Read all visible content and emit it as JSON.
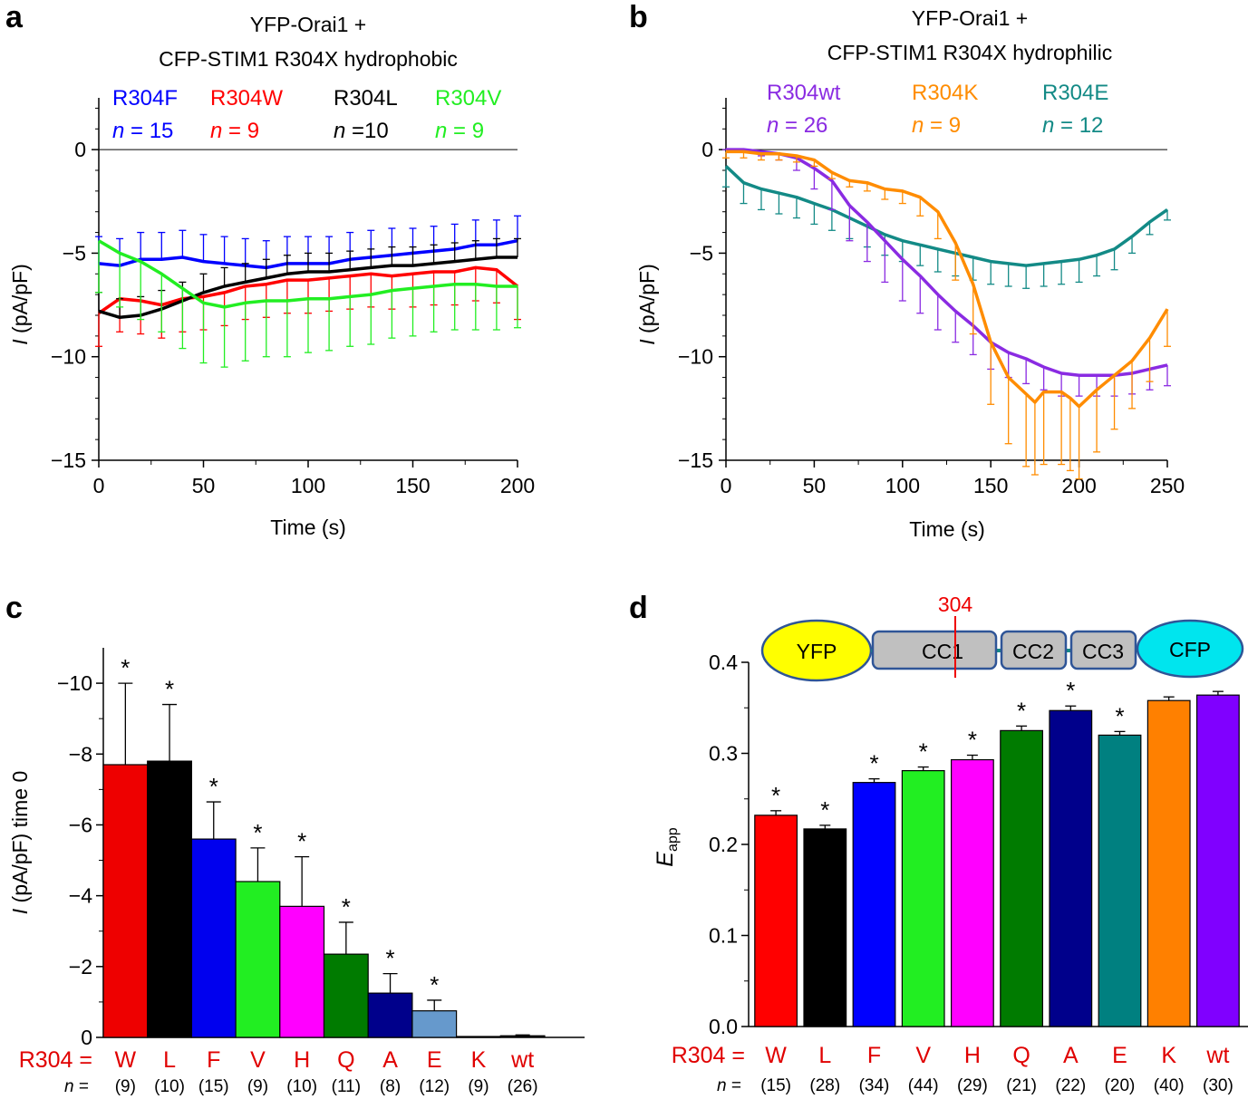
{
  "chart_data": [
    {
      "panel": "a",
      "type": "line",
      "title": [
        "YFP-Orai1 +",
        "CFP-STIM1 R304X hydrophobic"
      ],
      "xlabel": "Time (s)",
      "ylabel_italic": "I",
      "ylabel_rest": " (pA/pF)",
      "xlim": [
        0,
        200
      ],
      "ylim": [
        -15,
        2.5
      ],
      "xticks": [
        0,
        50,
        100,
        150,
        200
      ],
      "yticks": [
        0,
        -5,
        -10,
        -15
      ],
      "ytick_labels": [
        "0",
        "−5",
        "−10",
        "−15"
      ],
      "legend": [
        {
          "name": "R304F",
          "n_label": "n",
          "n_value": " = 15",
          "color": "#0000ff"
        },
        {
          "name": "R304W",
          "n_label": "n",
          "n_value": " = 9",
          "color": "#ff0000"
        },
        {
          "name": "R304L",
          "n_label": "n",
          "n_value": " =10",
          "color": "#000000"
        },
        {
          "name": "R304V",
          "n_label": "n",
          "n_value": " = 9",
          "color": "#22ee22"
        }
      ],
      "series": [
        {
          "name": "R304F",
          "color": "#0000ff",
          "err_dir": 1,
          "x": [
            0,
            10,
            20,
            30,
            40,
            50,
            60,
            70,
            80,
            90,
            100,
            110,
            120,
            130,
            140,
            150,
            160,
            170,
            180,
            190,
            200
          ],
          "y": [
            -5.5,
            -5.6,
            -5.3,
            -5.3,
            -5.2,
            -5.4,
            -5.5,
            -5.6,
            -5.7,
            -5.5,
            -5.5,
            -5.5,
            -5.3,
            -5.2,
            -5.1,
            -5.0,
            -4.9,
            -4.8,
            -4.6,
            -4.6,
            -4.4
          ],
          "err": [
            1.3,
            1.3,
            1.3,
            1.3,
            1.3,
            1.3,
            1.3,
            1.3,
            1.3,
            1.3,
            1.3,
            1.3,
            1.3,
            1.3,
            1.3,
            1.2,
            1.2,
            1.2,
            1.2,
            1.2,
            1.2
          ]
        },
        {
          "name": "R304W",
          "color": "#ff0000",
          "err_dir": -1,
          "x": [
            0,
            10,
            20,
            30,
            40,
            50,
            60,
            70,
            80,
            90,
            100,
            110,
            120,
            130,
            140,
            150,
            160,
            170,
            180,
            190,
            200
          ],
          "y": [
            -7.9,
            -7.2,
            -7.3,
            -7.5,
            -7.2,
            -7.1,
            -6.9,
            -6.6,
            -6.5,
            -6.3,
            -6.3,
            -6.2,
            -6.1,
            -6.0,
            -6.1,
            -6.0,
            -5.9,
            -5.9,
            -5.7,
            -5.8,
            -6.6
          ],
          "err": [
            1.6,
            1.6,
            1.6,
            1.6,
            1.6,
            1.6,
            1.6,
            1.6,
            1.6,
            1.6,
            1.6,
            1.6,
            1.6,
            1.6,
            1.6,
            1.6,
            1.6,
            1.6,
            1.6,
            1.6,
            1.6
          ]
        },
        {
          "name": "R304L",
          "color": "#000000",
          "err_dir": 1,
          "x": [
            0,
            10,
            20,
            30,
            40,
            50,
            60,
            70,
            80,
            90,
            100,
            110,
            120,
            130,
            140,
            150,
            160,
            170,
            180,
            190,
            200
          ],
          "y": [
            -7.8,
            -8.1,
            -8.0,
            -7.7,
            -7.3,
            -6.9,
            -6.6,
            -6.4,
            -6.2,
            -6.0,
            -5.9,
            -5.9,
            -5.8,
            -5.7,
            -5.6,
            -5.6,
            -5.5,
            -5.4,
            -5.3,
            -5.2,
            -5.2
          ],
          "err": [
            0.9,
            0.9,
            0.9,
            0.9,
            0.9,
            0.9,
            0.9,
            0.9,
            0.9,
            0.9,
            0.9,
            0.9,
            0.9,
            0.9,
            0.9,
            0.9,
            0.9,
            0.9,
            0.9,
            0.9,
            0.9
          ]
        },
        {
          "name": "R304V",
          "color": "#22ee22",
          "err_dir": -1,
          "x": [
            0,
            10,
            20,
            30,
            40,
            50,
            60,
            70,
            80,
            90,
            100,
            110,
            120,
            130,
            140,
            150,
            160,
            170,
            180,
            190,
            200
          ],
          "y": [
            -4.4,
            -5.0,
            -5.4,
            -6.0,
            -6.7,
            -7.4,
            -7.6,
            -7.4,
            -7.3,
            -7.3,
            -7.2,
            -7.2,
            -7.1,
            -7.0,
            -6.8,
            -6.7,
            -6.6,
            -6.5,
            -6.5,
            -6.6,
            -6.6
          ],
          "err": [
            2.5,
            2.6,
            2.8,
            2.8,
            2.9,
            2.9,
            2.9,
            2.8,
            2.7,
            2.7,
            2.6,
            2.5,
            2.4,
            2.4,
            2.3,
            2.3,
            2.2,
            2.2,
            2.2,
            2.1,
            2.0
          ]
        }
      ]
    },
    {
      "panel": "b",
      "type": "line",
      "title": [
        "YFP-Orai1 +",
        "CFP-STIM1 R304X hydrophilic"
      ],
      "xlabel": "Time (s)",
      "ylabel_italic": "I",
      "ylabel_rest": " (pA/pF)",
      "xlim": [
        0,
        250
      ],
      "ylim": [
        -15,
        2.5
      ],
      "xticks": [
        0,
        50,
        100,
        150,
        200,
        250
      ],
      "yticks": [
        0,
        -5,
        -10,
        -15
      ],
      "ytick_labels": [
        "0",
        "−5",
        "−10",
        "−15"
      ],
      "legend": [
        {
          "name": "R304wt",
          "n_label": "n",
          "n_value": " = 26",
          "color": "#8a2be2"
        },
        {
          "name": "R304K",
          "n_label": "n",
          "n_value": " = 9",
          "color": "#ff8c00"
        },
        {
          "name": "R304E",
          "n_label": "n",
          "n_value": " = 12",
          "color": "#138a86"
        }
      ],
      "series": [
        {
          "name": "R304E",
          "color": "#138a86",
          "err_dir": -1,
          "x": [
            0,
            10,
            20,
            30,
            40,
            50,
            60,
            70,
            80,
            90,
            100,
            110,
            120,
            130,
            140,
            150,
            160,
            170,
            180,
            190,
            200,
            210,
            220,
            230,
            240,
            250
          ],
          "y": [
            -0.8,
            -1.6,
            -1.9,
            -2.1,
            -2.3,
            -2.6,
            -2.9,
            -3.3,
            -3.7,
            -4.1,
            -4.4,
            -4.6,
            -4.8,
            -5.0,
            -5.2,
            -5.4,
            -5.5,
            -5.6,
            -5.5,
            -5.4,
            -5.3,
            -5.1,
            -4.8,
            -4.2,
            -3.5,
            -2.9
          ],
          "err": [
            1.0,
            1.0,
            1.0,
            1.0,
            1.0,
            1.0,
            1.0,
            1.0,
            1.0,
            1.0,
            1.0,
            1.0,
            1.1,
            1.1,
            1.1,
            1.1,
            1.1,
            1.1,
            1.1,
            1.1,
            1.1,
            1.0,
            1.0,
            0.8,
            0.6,
            0.5
          ]
        },
        {
          "name": "R304wt",
          "color": "#8a2be2",
          "err_dir": -1,
          "x": [
            0,
            10,
            20,
            30,
            40,
            50,
            60,
            70,
            80,
            90,
            100,
            110,
            120,
            130,
            140,
            150,
            160,
            170,
            180,
            190,
            200,
            210,
            220,
            230,
            240,
            250
          ],
          "y": [
            0,
            0,
            -0.1,
            -0.2,
            -0.4,
            -0.9,
            -1.5,
            -2.7,
            -3.5,
            -4.4,
            -5.3,
            -6.1,
            -7.0,
            -7.8,
            -8.5,
            -9.3,
            -9.8,
            -10.1,
            -10.5,
            -10.8,
            -10.9,
            -10.9,
            -10.9,
            -10.8,
            -10.6,
            -10.4
          ],
          "err": [
            0,
            0.1,
            0.2,
            0.3,
            0.6,
            1.0,
            1.4,
            1.7,
            1.9,
            2.0,
            2.0,
            1.8,
            1.7,
            1.5,
            1.4,
            1.3,
            1.2,
            1.2,
            1.1,
            1.1,
            1.0,
            1.0,
            1.0,
            1.0,
            1.0,
            1.0
          ]
        },
        {
          "name": "R304K",
          "color": "#ff8c00",
          "err_dir": -1,
          "x": [
            0,
            10,
            20,
            30,
            40,
            50,
            60,
            70,
            80,
            90,
            100,
            110,
            120,
            130,
            140,
            150,
            160,
            170,
            175,
            180,
            190,
            195,
            200,
            210,
            220,
            230,
            240,
            250
          ],
          "y": [
            -0.1,
            -0.1,
            -0.2,
            -0.2,
            -0.3,
            -0.5,
            -1.1,
            -1.5,
            -1.6,
            -1.9,
            -2.0,
            -2.3,
            -3.0,
            -4.5,
            -6.5,
            -9.3,
            -11.0,
            -11.8,
            -12.2,
            -11.7,
            -11.7,
            -12.0,
            -12.4,
            -11.6,
            -10.9,
            -10.2,
            -9.1,
            -7.7
          ],
          "err": [
            0.3,
            0.3,
            0.3,
            0.3,
            0.3,
            0.3,
            0.3,
            0.3,
            0.4,
            0.5,
            0.6,
            0.9,
            1.3,
            1.8,
            2.4,
            3.0,
            3.2,
            3.5,
            3.5,
            3.5,
            3.5,
            3.5,
            3.5,
            3.0,
            2.6,
            2.3,
            2.1,
            1.8
          ]
        }
      ]
    },
    {
      "panel": "c",
      "type": "bar",
      "ylabel_italic": "I",
      "ylabel_rest": " (pA/pF) time 0",
      "ylim": [
        0,
        -11
      ],
      "yticks": [
        0,
        -2,
        -4,
        -6,
        -8,
        -10
      ],
      "ytick_labels": [
        "0",
        "−2",
        "−4",
        "−6",
        "−8",
        "−10"
      ],
      "row_label": "R304 =",
      "n_row_label": "n",
      "n_row_eq": " =",
      "categories": [
        "W",
        "L",
        "F",
        "V",
        "H",
        "Q",
        "A",
        "E",
        "K",
        "wt"
      ],
      "values": [
        -7.7,
        -7.8,
        -5.6,
        -4.4,
        -3.7,
        -2.35,
        -1.25,
        -0.75,
        0,
        -0.02
      ],
      "errors": [
        2.3,
        1.6,
        1.05,
        0.95,
        1.4,
        0.9,
        0.55,
        0.3,
        0,
        0.05
      ],
      "significant": [
        true,
        true,
        true,
        true,
        true,
        true,
        true,
        true,
        false,
        false
      ],
      "star_symbol": "*",
      "n_values": [
        "(9)",
        "(10)",
        "(15)",
        "(9)",
        "(10)",
        "(11)",
        "(8)",
        "(12)",
        "(9)",
        "(26)"
      ],
      "colors": [
        "#ee0000",
        "#000000",
        "#0000ee",
        "#22ee22",
        "#ff00ff",
        "#007b00",
        "#00008b",
        "#6699cc",
        "#000000",
        "#000000"
      ]
    },
    {
      "panel": "d",
      "type": "bar",
      "ylabel_italic": "E",
      "ylabel_sub": "app",
      "ylim": [
        0,
        0.4
      ],
      "yticks": [
        0,
        0.1,
        0.2,
        0.3,
        0.4
      ],
      "ytick_labels": [
        "0.0",
        "0.1",
        "0.2",
        "0.3",
        "0.4"
      ],
      "row_label": "R304 =",
      "n_row_label": "n",
      "n_row_eq": " =",
      "categories": [
        "W",
        "L",
        "F",
        "V",
        "H",
        "Q",
        "A",
        "E",
        "K",
        "wt"
      ],
      "values": [
        0.232,
        0.217,
        0.268,
        0.281,
        0.293,
        0.325,
        0.347,
        0.32,
        0.358,
        0.364
      ],
      "errors": [
        0.005,
        0.004,
        0.004,
        0.004,
        0.005,
        0.005,
        0.005,
        0.004,
        0.004,
        0.004
      ],
      "significant": [
        true,
        true,
        true,
        true,
        true,
        true,
        true,
        true,
        false,
        false
      ],
      "star_symbol": "*",
      "n_values": [
        "(15)",
        "(28)",
        "(34)",
        "(44)",
        "(29)",
        "(21)",
        "(22)",
        "(20)",
        "(40)",
        "(30)"
      ],
      "colors": [
        "#ff0000",
        "#000000",
        "#0000ff",
        "#22ee22",
        "#ff00ff",
        "#007b00",
        "#00008b",
        "#008080",
        "#ff8000",
        "#8000ff"
      ],
      "schematic": {
        "marker_label": "304",
        "yfp": "YFP",
        "cc1": "CC1",
        "cc2": "CC2",
        "cc3": "CC3",
        "cfp": "CFP",
        "yfp_color": "#ffff00",
        "cfp_color": "#00e5ee",
        "cc_color": "#c0c0c0"
      }
    }
  ],
  "panel_labels": [
    "a",
    "b",
    "c",
    "d"
  ],
  "label_color": "#e00000"
}
